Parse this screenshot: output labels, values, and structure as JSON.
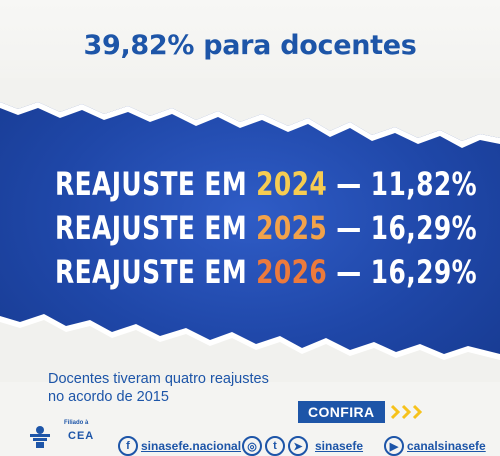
{
  "headline": "39,82% para docentes",
  "lines": [
    {
      "prefix": "REAJUSTE EM ",
      "year": "2024",
      "suffix": " — 11,82%",
      "year_color": "#f6cc52"
    },
    {
      "prefix": "REAJUSTE EM ",
      "year": "2025",
      "suffix": " — 16,29%",
      "year_color": "#f2a24a"
    },
    {
      "prefix": "REAJUSTE EM ",
      "year": "2026",
      "suffix": " — 16,29%",
      "year_color": "#ec7a3c"
    }
  ],
  "subtitle_line1": "Docentes tiveram quatro reajustes",
  "subtitle_line2": "no acordo de 2015",
  "cta": {
    "label": "CONFIRA",
    "arrow_color": "#f6c21c"
  },
  "footer": {
    "affiliation": "Filiado à",
    "affiliation_org": "CEA",
    "facebook_handle": "sinasefe.nacional",
    "multi_handle": "sinasefe",
    "youtube_handle": "canalsinasefe"
  },
  "colors": {
    "brand_blue": "#1d55a8",
    "band_blue": "#1f47a8",
    "accent_yellow": "#f6c21c"
  }
}
